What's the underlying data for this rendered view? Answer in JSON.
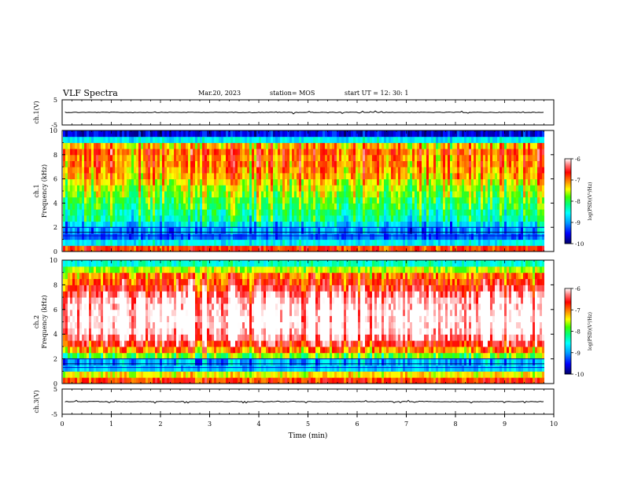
{
  "header": {
    "title": "VLF Spectra",
    "date": "Mar.20, 2023",
    "station": "station= MOS",
    "start": "start UT =  12: 30: 1"
  },
  "colors": {
    "colormap": [
      "#000066",
      "#0000ff",
      "#00a0ff",
      "#00ffff",
      "#00ff80",
      "#40ff00",
      "#ffff00",
      "#ff8000",
      "#ff0000",
      "#ff8080",
      "#ffffff"
    ]
  },
  "chart_data": [
    {
      "type": "line",
      "name": "ch1-waveform",
      "ylabel": "ch.1(V)",
      "ylim": [
        -5,
        5
      ],
      "y_ticks": [
        "5",
        "-5"
      ],
      "x": [
        0,
        10
      ],
      "values": [
        0,
        0
      ]
    },
    {
      "type": "heatmap",
      "name": "ch1-spectrogram",
      "ylabel": "ch.1\nFrequency (kHz)",
      "ylabel_line1": "ch.1",
      "ylabel_line2": "Frequency (kHz)",
      "ylim": [
        0,
        10
      ],
      "y_ticks": [
        "0",
        "2",
        "4",
        "6",
        "8",
        "10"
      ],
      "xlim": [
        0,
        10
      ],
      "frequency_bins_kHz": [
        0.5,
        1.0,
        1.5,
        2.0,
        2.5,
        3.0,
        3.5,
        4.0,
        4.5,
        5.0,
        5.5,
        6.0,
        6.5,
        7.0,
        7.5,
        8.0,
        8.5,
        9.0,
        9.5,
        10.0
      ],
      "log_psd_profile": [
        -6.8,
        -8.6,
        -9.2,
        -9.0,
        -8.7,
        -8.3,
        -8.2,
        -8.0,
        -7.9,
        -7.7,
        -7.6,
        -7.4,
        -7.2,
        -7.1,
        -7.0,
        -7.0,
        -6.9,
        -7.2,
        -8.6,
        -9.6
      ],
      "colorbar": {
        "label": "log(PSD)(V²/Hz)",
        "range": [
          -10,
          -6
        ],
        "ticks": [
          "-6",
          "-7",
          "-8",
          "-9",
          "-10"
        ]
      }
    },
    {
      "type": "heatmap",
      "name": "ch2-spectrogram",
      "ylabel": "ch.2\nFrequency (kHz)",
      "ylabel_line1": "ch.2",
      "ylabel_line2": "Frequency (kHz)",
      "ylim": [
        0,
        10
      ],
      "y_ticks": [
        "0",
        "2",
        "4",
        "6",
        "8",
        "10"
      ],
      "xlim": [
        0,
        10
      ],
      "frequency_bins_kHz": [
        0.5,
        1.0,
        1.5,
        2.0,
        2.5,
        3.0,
        3.5,
        4.0,
        4.5,
        5.0,
        5.5,
        6.0,
        6.5,
        7.0,
        7.5,
        8.0,
        8.5,
        9.0,
        9.5,
        10.0
      ],
      "log_psd_profile": [
        -6.8,
        -7.4,
        -8.8,
        -8.9,
        -7.8,
        -7.1,
        -6.6,
        -6.2,
        -6.0,
        -5.9,
        -5.9,
        -5.9,
        -6.0,
        -6.1,
        -6.3,
        -6.6,
        -6.8,
        -7.0,
        -7.6,
        -8.4
      ],
      "colorbar": {
        "label": "log(PSD)(V²/Hz)",
        "range": [
          -10,
          -6
        ],
        "ticks": [
          "-6",
          "-7",
          "-8",
          "-9",
          "-10"
        ]
      }
    },
    {
      "type": "line",
      "name": "ch3-waveform",
      "ylabel": "ch.3(V)",
      "ylim": [
        -5,
        5
      ],
      "y_ticks": [
        "5",
        "-5"
      ],
      "x": [
        0,
        10
      ],
      "values": [
        0,
        0
      ]
    }
  ],
  "xaxis": {
    "label": "Time (min)",
    "xlim": [
      0,
      10
    ],
    "ticks": [
      "0",
      "1",
      "2",
      "3",
      "4",
      "5",
      "6",
      "7",
      "8",
      "9",
      "10"
    ]
  }
}
